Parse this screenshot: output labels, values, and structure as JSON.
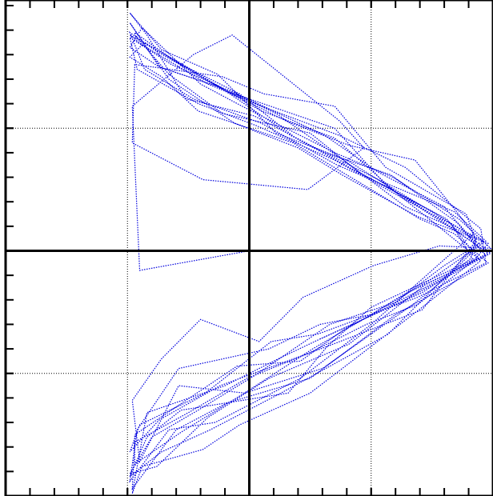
{
  "chart_data": {
    "type": "line",
    "title": "",
    "xlabel": "",
    "ylabel": "",
    "xlim": [
      -1.0,
      1.0
    ],
    "ylim": [
      -1.0,
      1.0
    ],
    "grid": true,
    "grid_style": "dotted",
    "axes_through_origin": true,
    "legend": "none",
    "x_major_ticks": [
      -1.0,
      -0.5,
      0.0,
      0.5,
      1.0
    ],
    "y_major_ticks": [
      -1.0,
      -0.5,
      0.0,
      0.5,
      1.0
    ],
    "minor_ticks_per_major": 5,
    "series": [
      {
        "color": "#0000dd",
        "style": "dotted-polyline",
        "x": [
          0.0,
          -0.45,
          -0.48,
          -0.23,
          -0.07,
          0.37,
          0.47,
          0.24,
          -0.19,
          -0.48,
          -0.47,
          -0.11,
          0.06,
          0.35,
          0.56,
          0.89,
          0.93,
          0.71,
          0.32,
          -0.12,
          -0.37,
          -0.49,
          -0.45,
          -0.18,
          0.09,
          0.28,
          0.69,
          0.97,
          0.95,
          0.64,
          0.37,
          0.05,
          -0.17,
          -0.44,
          -0.49,
          -0.29,
          -0.09,
          0.35,
          0.55,
          0.84,
          0.97,
          0.74,
          0.26,
          -0.02,
          -0.29,
          -0.45,
          -0.48,
          -0.36,
          -0.2,
          0.04,
          0.22,
          0.51,
          0.78,
          0.99,
          0.86,
          0.59,
          0.35,
          -0.03,
          -0.2,
          -0.44,
          -0.49,
          -0.37,
          -0.07,
          0.31,
          0.53,
          0.8,
          0.93,
          0.57,
          0.13,
          -0.16,
          -0.36,
          -0.49,
          -0.42,
          -0.28,
          0.16,
          0.32,
          0.5,
          0.93,
          0.98,
          0.69,
          0.38,
          0.2,
          -0.06,
          -0.33,
          -0.49,
          -0.37,
          -0.13,
          0.15,
          0.41,
          0.68,
          0.85,
          0.92,
          0.5,
          0.21,
          -0.14,
          -0.33,
          -0.49,
          -0.46,
          -0.29,
          0.08,
          0.29,
          0.5,
          0.63,
          0.97,
          0.86,
          0.58,
          0.31,
          0.02,
          -0.26,
          -0.42,
          -0.49,
          -0.36,
          -0.13,
          0.11,
          0.4,
          0.56,
          0.75,
          0.95,
          0.71,
          0.25,
          -0.04,
          -0.19,
          -0.44,
          -0.48,
          -0.42,
          -0.1,
          0.12,
          0.29,
          0.71,
          0.82,
          0.94,
          0.6,
          0.35,
          0.05,
          -0.18,
          -0.43,
          -0.49,
          -0.36,
          -0.21,
          0.18,
          0.45,
          0.7,
          0.84,
          0.98,
          0.6,
          0.25,
          -0.09,
          -0.3,
          -0.48,
          -0.47,
          -0.26,
          -0.05,
          0.21,
          0.39,
          0.72,
          0.94,
          0.81,
          0.45,
          0.25,
          -0.11,
          -0.33,
          -0.47,
          -0.47,
          -0.3,
          -0.04,
          0.19,
          0.43,
          0.75,
          0.93,
          0.91,
          0.67,
          0.3,
          -0.02,
          -0.28,
          -0.47,
          -0.47,
          -0.25,
          -0.01,
          0.24,
          0.48,
          0.69,
          0.92,
          0.83,
          0.53,
          0.17,
          -0.08,
          -0.39,
          -0.49,
          -0.43,
          -0.23,
          0.05,
          0.36,
          0.57,
          0.78,
          0.98,
          0.72,
          0.41,
          0.08,
          -0.17,
          -0.38,
          -0.49,
          -0.4,
          -0.21,
          0.02,
          0.33,
          0.6,
          0.8,
          0.96,
          0.71,
          0.35,
          0.03,
          -0.21,
          -0.46,
          -0.49,
          -0.32,
          -0.1,
          0.11,
          0.4,
          0.64,
          0.89,
          0.99,
          0.62,
          0.29
        ],
        "y": [
          0.0,
          -0.08,
          0.59,
          0.8,
          0.88,
          0.53,
          0.42,
          0.25,
          0.29,
          0.44,
          0.76,
          0.71,
          0.64,
          0.59,
          0.34,
          0.15,
          0.04,
          -0.24,
          -0.39,
          -0.55,
          -0.69,
          -0.82,
          -0.71,
          -0.58,
          -0.37,
          -0.34,
          -0.19,
          -0.05,
          0.09,
          0.34,
          0.47,
          0.59,
          0.68,
          0.84,
          0.88,
          0.77,
          0.65,
          0.5,
          0.28,
          0.16,
          0.04,
          -0.12,
          -0.4,
          -0.58,
          -0.55,
          -0.86,
          -0.61,
          -0.44,
          -0.28,
          -0.37,
          -0.19,
          -0.06,
          0.02,
          0.01,
          0.13,
          0.3,
          0.4,
          0.59,
          0.68,
          0.91,
          0.83,
          0.75,
          0.65,
          0.47,
          0.32,
          0.18,
          0.02,
          -0.34,
          -0.58,
          -0.73,
          -0.82,
          -0.92,
          -0.76,
          -0.65,
          -0.58,
          -0.39,
          -0.23,
          -0.03,
          0.03,
          0.14,
          0.31,
          0.42,
          0.52,
          0.7,
          0.93,
          0.75,
          0.67,
          0.53,
          0.43,
          0.37,
          0.16,
          0.07,
          -0.3,
          -0.52,
          -0.7,
          -0.73,
          -0.94,
          -0.73,
          -0.48,
          -0.4,
          -0.3,
          -0.26,
          -0.18,
          -0.02,
          0.11,
          0.31,
          0.4,
          0.55,
          0.62,
          0.88,
          0.97,
          0.82,
          0.72,
          0.48,
          0.37,
          0.27,
          0.12,
          -0.04,
          -0.23,
          -0.58,
          -0.71,
          -0.81,
          -0.88,
          -0.99,
          -0.66,
          -0.55,
          -0.44,
          -0.36,
          -0.17,
          -0.1,
          0.02,
          0.24,
          0.46,
          0.57,
          0.7,
          0.85,
          0.79,
          0.71,
          0.57,
          0.44,
          0.28,
          0.13,
          0.07,
          -0.05,
          -0.26,
          -0.52,
          -0.62,
          -0.73,
          -0.97,
          -0.75,
          -0.61,
          -0.47,
          -0.45,
          -0.32,
          -0.15,
          -0.03,
          0.13,
          0.32,
          0.48,
          0.56,
          0.72,
          0.88,
          0.89,
          0.77,
          0.64,
          0.46,
          0.33,
          0.16,
          0.05,
          -0.03,
          -0.22,
          -0.48,
          -0.58,
          -0.74,
          -0.87,
          -0.78,
          -0.66,
          -0.52,
          -0.42,
          -0.3,
          -0.22,
          -0.04,
          0.11,
          0.29,
          0.47,
          0.64,
          0.82,
          0.89,
          0.74,
          0.62,
          0.52,
          0.35,
          0.26,
          0.13,
          -0.01,
          -0.14,
          -0.38,
          -0.52,
          -0.68,
          -0.88,
          -0.91,
          -0.76,
          -0.65,
          -0.51,
          -0.3,
          -0.21,
          -0.06,
          0.04,
          0.17,
          0.37,
          0.51,
          0.6,
          0.74,
          0.87,
          0.76,
          0.66,
          0.56,
          0.36,
          0.18,
          0.07,
          -0.01,
          -0.21,
          -0.36
        ]
      }
    ]
  }
}
